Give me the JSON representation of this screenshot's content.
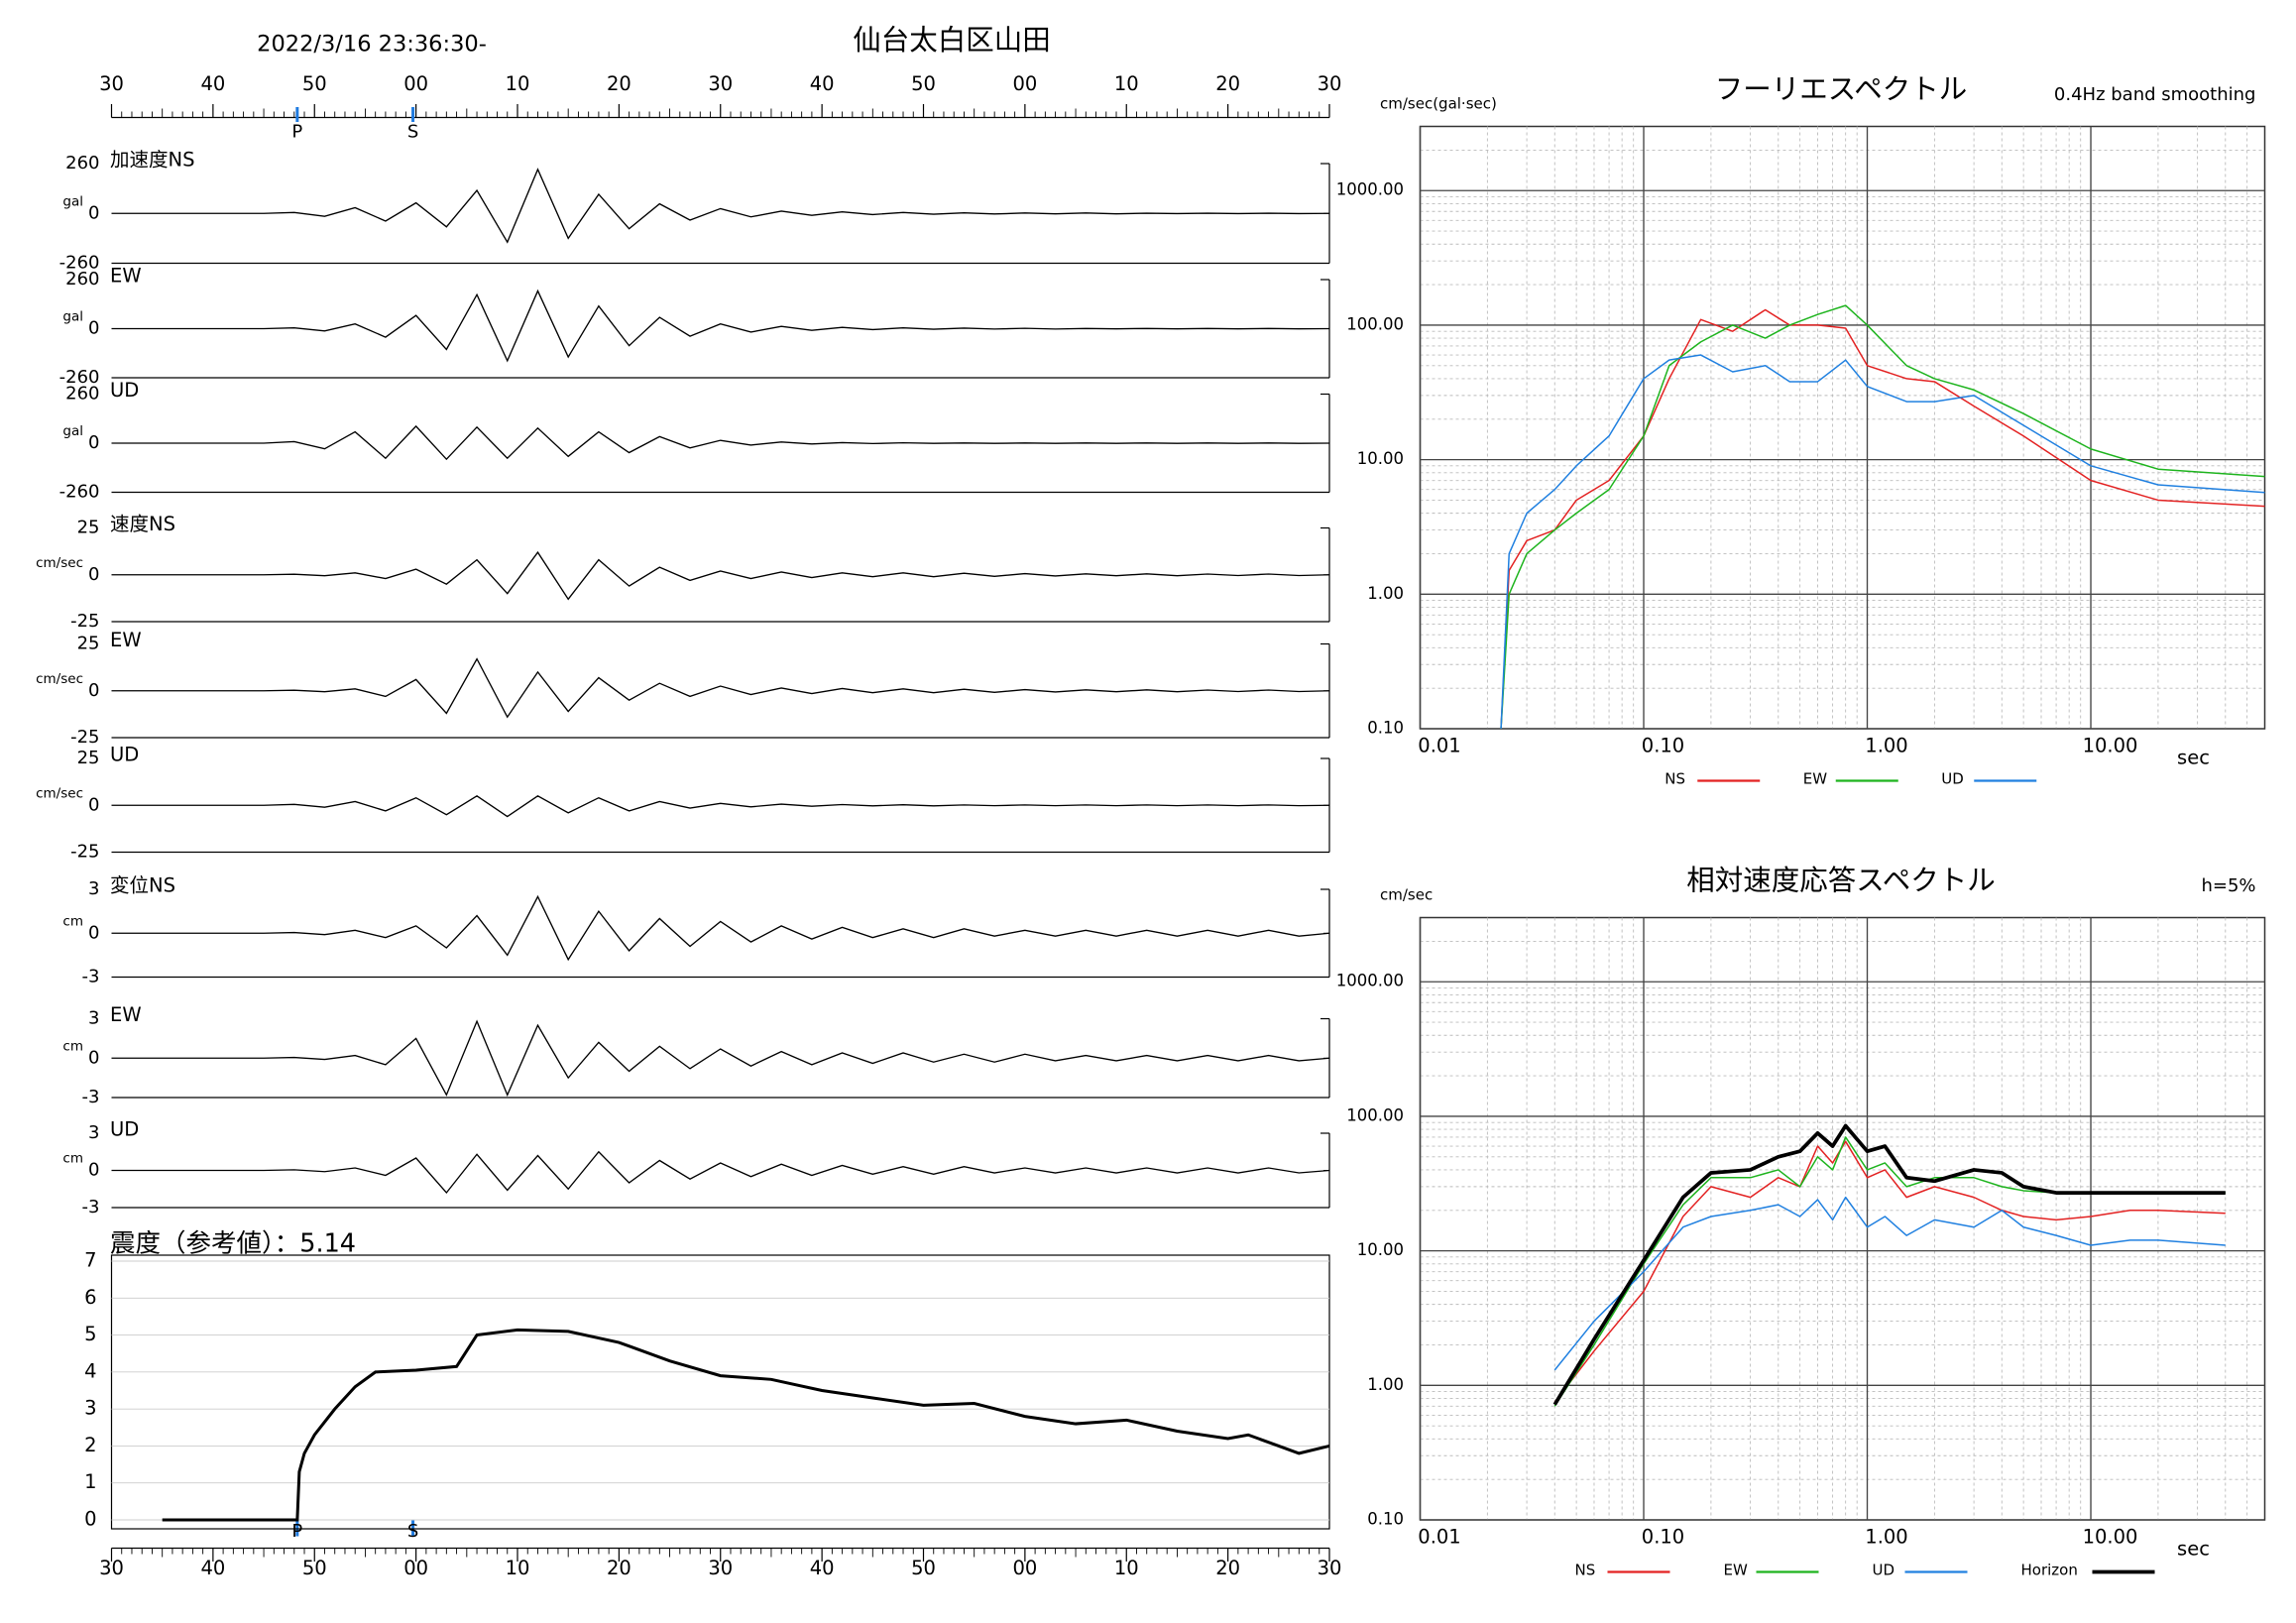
{
  "header": {
    "datetime": "2022/3/16 23:36:30-",
    "station": "仙台太白区山田"
  },
  "chart_data": [
    {
      "type": "waveform",
      "xlim": [
        0,
        120
      ],
      "xticks": [
        {
          "value": 0,
          "label": "30"
        },
        {
          "value": 10,
          "label": "40"
        },
        {
          "value": 20,
          "label": "50"
        },
        {
          "value": 30,
          "label": "00"
        },
        {
          "value": 40,
          "label": "10"
        },
        {
          "value": 50,
          "label": "20"
        },
        {
          "value": 60,
          "label": "30"
        },
        {
          "value": 70,
          "label": "40"
        },
        {
          "value": 80,
          "label": "50"
        },
        {
          "value": 90,
          "label": "00"
        },
        {
          "value": 100,
          "label": "10"
        },
        {
          "value": 110,
          "label": "20"
        },
        {
          "value": 120,
          "label": "30"
        }
      ],
      "markers": [
        {
          "label": "P",
          "value": 18.3
        },
        {
          "label": "S",
          "value": 29.7
        }
      ],
      "t": [
        0,
        3,
        6,
        9,
        12,
        15,
        18,
        21,
        24,
        27,
        30,
        33,
        36,
        39,
        42,
        45,
        48,
        51,
        54,
        57,
        60,
        63,
        66,
        69,
        72,
        75,
        78,
        81,
        84,
        87,
        90,
        93,
        96,
        99,
        102,
        105,
        108,
        111,
        114,
        117,
        120
      ],
      "traces": [
        {
          "name": "加速度NS",
          "unit": "gal",
          "ylim": [
            -260,
            260
          ],
          "yticks": [
            -260,
            0,
            260
          ],
          "values": [
            0,
            0,
            0,
            0,
            0,
            0,
            5,
            -15,
            30,
            -40,
            55,
            -70,
            120,
            -150,
            230,
            -130,
            100,
            -80,
            50,
            -35,
            25,
            -18,
            12,
            -10,
            8,
            -6,
            5,
            -4,
            3,
            -3,
            2,
            -2,
            2,
            -2,
            1,
            -1,
            1,
            -1,
            1,
            -1,
            0
          ]
        },
        {
          "name": "EW",
          "unit": "gal",
          "ylim": [
            -260,
            260
          ],
          "yticks": [
            -260,
            0,
            260
          ],
          "values": [
            0,
            0,
            0,
            0,
            0,
            0,
            4,
            -12,
            25,
            -45,
            70,
            -110,
            180,
            -170,
            200,
            -150,
            120,
            -90,
            60,
            -40,
            25,
            -18,
            12,
            -9,
            7,
            -5,
            4,
            -3,
            3,
            -2,
            2,
            -2,
            1,
            -1,
            1,
            -1,
            1,
            -1,
            1,
            -1,
            0
          ]
        },
        {
          "name": "UD",
          "unit": "gal",
          "ylim": [
            -260,
            260
          ],
          "yticks": [
            -260,
            0,
            260
          ],
          "values": [
            0,
            0,
            0,
            0,
            0,
            0,
            8,
            -30,
            60,
            -80,
            90,
            -85,
            85,
            -80,
            80,
            -70,
            60,
            -50,
            35,
            -25,
            15,
            -10,
            6,
            -4,
            3,
            -2,
            2,
            -1,
            1,
            -1,
            1,
            -1,
            1,
            -1,
            1,
            -1,
            1,
            -1,
            1,
            -1,
            0
          ]
        },
        {
          "name": "速度NS",
          "unit": "cm/sec",
          "ylim": [
            -25,
            25
          ],
          "yticks": [
            -25,
            0,
            25
          ],
          "values": [
            0,
            0,
            0,
            0,
            0,
            0,
            0.3,
            -0.5,
            1,
            -2,
            3,
            -5,
            8,
            -10,
            12,
            -13,
            8,
            -6,
            4,
            -3,
            2,
            -2,
            1.5,
            -1.5,
            1,
            -1,
            1,
            -1,
            0.8,
            -0.8,
            0.6,
            -0.6,
            0.5,
            -0.5,
            0.5,
            -0.5,
            0.4,
            -0.4,
            0.4,
            -0.4,
            0
          ]
        },
        {
          "name": "EW",
          "unit": "cm/sec",
          "ylim": [
            -25,
            25
          ],
          "yticks": [
            -25,
            0,
            25
          ],
          "values": [
            0,
            0,
            0,
            0,
            0,
            0,
            0.3,
            -0.5,
            1,
            -3,
            6,
            -12,
            17,
            -14,
            10,
            -11,
            7,
            -5,
            4,
            -3,
            2.5,
            -2,
            1.5,
            -1.5,
            1.2,
            -1,
            1,
            -1,
            0.8,
            -0.8,
            0.6,
            -0.6,
            0.5,
            -0.5,
            0.5,
            -0.5,
            0.4,
            -0.4,
            0.4,
            -0.4,
            0
          ]
        },
        {
          "name": "UD",
          "unit": "cm/sec",
          "ylim": [
            -25,
            25
          ],
          "yticks": [
            -25,
            0,
            25
          ],
          "values": [
            0,
            0,
            0,
            0,
            0,
            0,
            0.5,
            -1,
            2,
            -3,
            4,
            -5,
            5,
            -6,
            5,
            -4,
            4,
            -3,
            2,
            -1.5,
            1,
            -0.8,
            0.6,
            -0.5,
            0.4,
            -0.3,
            0.3,
            -0.3,
            0.2,
            -0.2,
            0.2,
            -0.2,
            0.2,
            -0.2,
            0.2,
            -0.2,
            0.2,
            -0.2,
            0.2,
            -0.2,
            0
          ]
        },
        {
          "name": "変位NS",
          "unit": "cm",
          "ylim": [
            -3,
            3
          ],
          "yticks": [
            -3,
            0,
            3
          ],
          "values": [
            0,
            0,
            0,
            0,
            0,
            0,
            0.05,
            -0.1,
            0.2,
            -0.3,
            0.5,
            -1,
            1.2,
            -1.5,
            2.5,
            -1.8,
            1.5,
            -1.2,
            1,
            -0.9,
            0.8,
            -0.6,
            0.5,
            -0.4,
            0.4,
            -0.3,
            0.3,
            -0.3,
            0.3,
            -0.2,
            0.2,
            -0.2,
            0.2,
            -0.2,
            0.2,
            -0.2,
            0.2,
            -0.2,
            0.2,
            -0.2,
            0
          ]
        },
        {
          "name": "EW",
          "unit": "cm",
          "ylim": [
            -3,
            3
          ],
          "yticks": [
            -3,
            0,
            3
          ],
          "values": [
            0,
            0,
            0,
            0,
            0,
            0,
            0.05,
            -0.1,
            0.2,
            -0.5,
            1.5,
            -2.8,
            2.8,
            -2.8,
            2.5,
            -1.5,
            1.2,
            -1,
            0.9,
            -0.8,
            0.7,
            -0.6,
            0.5,
            -0.5,
            0.4,
            -0.4,
            0.4,
            -0.3,
            0.3,
            -0.3,
            0.3,
            -0.2,
            0.2,
            -0.2,
            0.2,
            -0.2,
            0.2,
            -0.2,
            0.2,
            -0.2,
            0
          ]
        },
        {
          "name": "UD",
          "unit": "cm",
          "ylim": [
            -3,
            3
          ],
          "yticks": [
            -3,
            0,
            3
          ],
          "values": [
            0,
            0,
            0,
            0,
            0,
            0,
            0.05,
            -0.1,
            0.2,
            -0.4,
            1,
            -1.8,
            1.3,
            -1.6,
            1.2,
            -1.5,
            1.5,
            -1,
            0.8,
            -0.7,
            0.6,
            -0.5,
            0.5,
            -0.4,
            0.4,
            -0.3,
            0.3,
            -0.3,
            0.3,
            -0.2,
            0.2,
            -0.2,
            0.2,
            -0.2,
            0.2,
            -0.2,
            0.2,
            -0.2,
            0.2,
            -0.2,
            0
          ]
        }
      ]
    },
    {
      "type": "line",
      "title": "震度（参考値）：5.14",
      "color": "#000000",
      "x": [
        5,
        18.3,
        18.5,
        19,
        20,
        22,
        24,
        26,
        30,
        34,
        36,
        40,
        45,
        50,
        55,
        60,
        65,
        70,
        75,
        80,
        85,
        90,
        95,
        100,
        105,
        110,
        112,
        115,
        117,
        120
      ],
      "values": [
        0,
        0,
        1.3,
        1.8,
        2.3,
        3,
        3.6,
        4,
        4.05,
        4.15,
        5,
        5.14,
        5.1,
        4.8,
        4.3,
        3.9,
        3.8,
        3.5,
        3.3,
        3.1,
        3.15,
        2.8,
        2.6,
        2.7,
        2.4,
        2.2,
        2.3,
        2,
        1.8,
        2
      ],
      "ylim": [
        0,
        7
      ],
      "yticks": [
        0,
        1,
        2,
        3,
        4,
        5,
        6,
        7
      ],
      "grid": true
    },
    {
      "type": "log-line",
      "title": "フーリエスペクトル",
      "subtitle": "0.4Hz band smoothing",
      "y_label": "cm/sec(gal·sec)",
      "x_label": "sec",
      "xlim": [
        0.01,
        60
      ],
      "ylim": [
        0.1,
        3000
      ],
      "grid": true,
      "xticks": [
        {
          "value": 0.01,
          "label": "0.01"
        },
        {
          "value": 0.1,
          "label": "0.10"
        },
        {
          "value": 1,
          "label": "1.00"
        },
        {
          "value": 10,
          "label": "10.00"
        }
      ],
      "yticks": [
        {
          "value": 0.1,
          "label": "0.10"
        },
        {
          "value": 1,
          "label": "1.00"
        },
        {
          "value": 10,
          "label": "10.00"
        },
        {
          "value": 100,
          "label": "100.00"
        },
        {
          "value": 1000,
          "label": "1000.00"
        }
      ],
      "x": [
        0.023,
        0.025,
        0.03,
        0.04,
        0.05,
        0.07,
        0.1,
        0.13,
        0.18,
        0.25,
        0.35,
        0.45,
        0.6,
        0.8,
        1,
        1.5,
        2,
        3,
        5,
        10,
        20,
        60
      ],
      "series": [
        {
          "name": "NS",
          "color": "#e32222",
          "linewidth": 1,
          "values": [
            0.1,
            1.5,
            2.5,
            3,
            5,
            7,
            15,
            40,
            110,
            90,
            130,
            100,
            100,
            95,
            50,
            40,
            38,
            25,
            15,
            7,
            5,
            4.5
          ]
        },
        {
          "name": "EW",
          "color": "#1eb41e",
          "linewidth": 1,
          "values": [
            0.1,
            1,
            2,
            3,
            4,
            6,
            15,
            50,
            75,
            100,
            80,
            100,
            120,
            140,
            100,
            50,
            40,
            33,
            22,
            12,
            8.5,
            7.5
          ]
        },
        {
          "name": "UD",
          "color": "#2080e0",
          "linewidth": 1,
          "values": [
            0.1,
            2,
            4,
            6,
            9,
            15,
            40,
            55,
            60,
            45,
            50,
            38,
            38,
            55,
            35,
            27,
            27,
            30,
            18,
            9,
            6.5,
            5.7
          ]
        }
      ]
    },
    {
      "type": "log-line",
      "title": "相対速度応答スペクトル",
      "subtitle": "h=5%",
      "y_label": "cm/sec",
      "x_label": "sec",
      "xlim": [
        0.01,
        60
      ],
      "ylim": [
        0.1,
        3000
      ],
      "grid": true,
      "xticks": [
        {
          "value": 0.01,
          "label": "0.01"
        },
        {
          "value": 0.1,
          "label": "0.10"
        },
        {
          "value": 1,
          "label": "1.00"
        },
        {
          "value": 10,
          "label": "10.00"
        }
      ],
      "yticks": [
        {
          "value": 0.1,
          "label": "0.10"
        },
        {
          "value": 1,
          "label": "1.00"
        },
        {
          "value": 10,
          "label": "10.00"
        },
        {
          "value": 100,
          "label": "100.00"
        },
        {
          "value": 1000,
          "label": "1000.00"
        }
      ],
      "x": [
        0.04,
        0.06,
        0.1,
        0.15,
        0.2,
        0.3,
        0.4,
        0.5,
        0.6,
        0.7,
        0.8,
        1,
        1.2,
        1.5,
        2,
        3,
        4,
        5,
        7,
        10,
        15,
        20,
        40
      ],
      "series": [
        {
          "name": "NS",
          "color": "#e32222",
          "linewidth": 1,
          "values": [
            0.75,
            1.8,
            5,
            18,
            30,
            25,
            35,
            30,
            60,
            45,
            65,
            35,
            40,
            25,
            30,
            25,
            20,
            18,
            17,
            18,
            20,
            20,
            19
          ]
        },
        {
          "name": "EW",
          "color": "#1eb41e",
          "linewidth": 1,
          "values": [
            0.7,
            2,
            8,
            22,
            35,
            35,
            40,
            30,
            50,
            40,
            70,
            40,
            45,
            30,
            35,
            35,
            30,
            28,
            27,
            27,
            27,
            27,
            27
          ]
        },
        {
          "name": "UD",
          "color": "#2080e0",
          "linewidth": 1,
          "values": [
            1.3,
            3,
            7,
            15,
            18,
            20,
            22,
            18,
            24,
            17,
            25,
            15,
            18,
            13,
            17,
            15,
            20,
            15,
            13,
            11,
            12,
            12,
            11
          ]
        },
        {
          "name": "Horizon",
          "color": "#000000",
          "linewidth": 2.5,
          "values": [
            0.72,
            2.2,
            8.5,
            25,
            38,
            40,
            50,
            55,
            75,
            60,
            85,
            55,
            60,
            35,
            33,
            40,
            38,
            30,
            27,
            27,
            27,
            27,
            27
          ]
        }
      ]
    }
  ]
}
